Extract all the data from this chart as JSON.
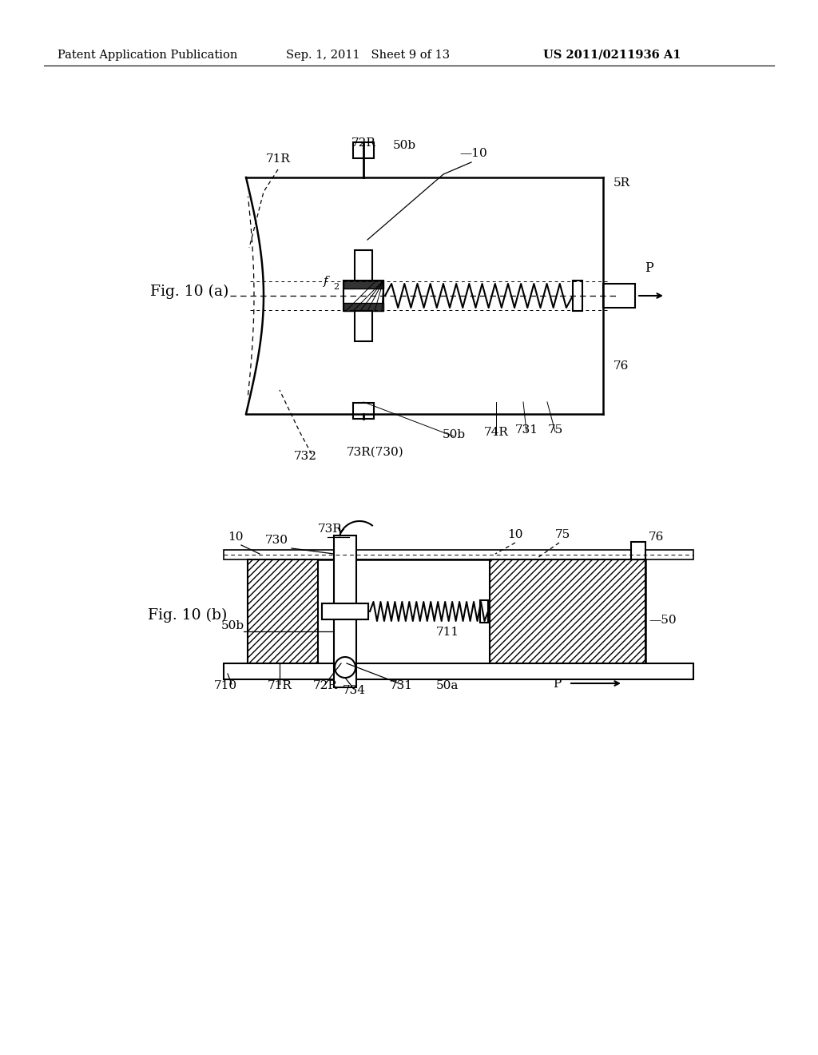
{
  "bg_color": "#ffffff",
  "header_left": "Patent Application Publication",
  "header_mid": "Sep. 1, 2011   Sheet 9 of 13",
  "header_right": "US 2011/0211936 A1",
  "fig_a_label": "Fig. 10 (a)",
  "fig_b_label": "Fig. 10 (b)"
}
